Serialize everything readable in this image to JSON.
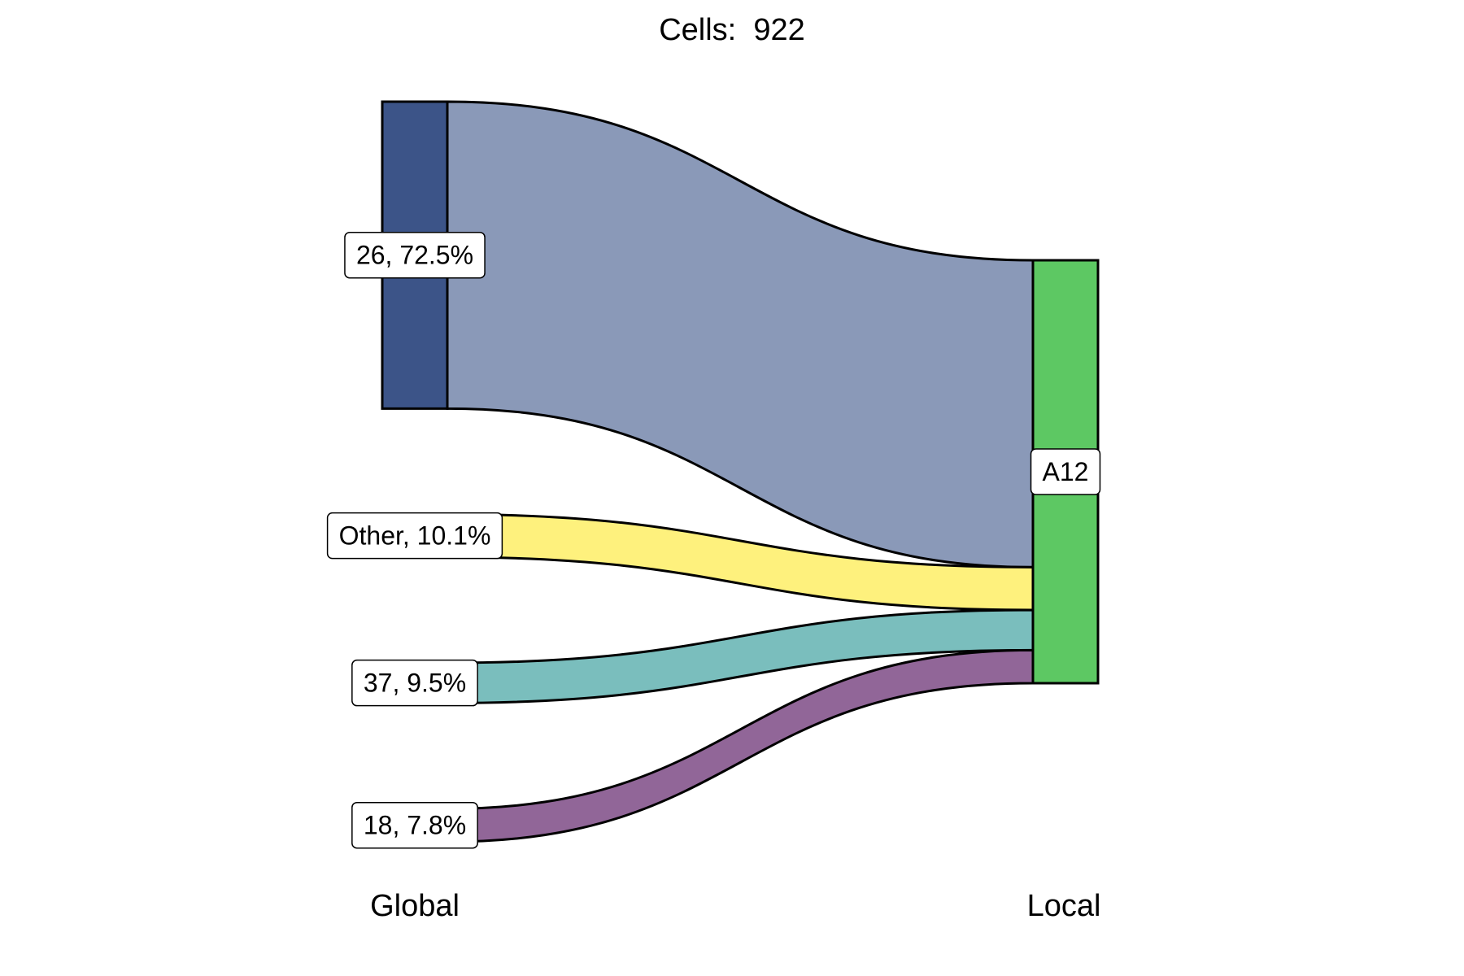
{
  "chart_data": {
    "type": "sankey",
    "title": "Cells:  922",
    "axis_labels": [
      "Global",
      "Local"
    ],
    "left_nodes": [
      {
        "label": "26, 72.5%",
        "name": "26",
        "percent": 72.5,
        "color": "#3c5488",
        "flow_color": "#8a99b8"
      },
      {
        "label": "Other, 10.1%",
        "name": "Other",
        "percent": 10.1,
        "color": "#fef17d",
        "flow_color": "#fef17d"
      },
      {
        "label": "37, 9.5%",
        "name": "37",
        "percent": 9.5,
        "color": "#7abebd",
        "flow_color": "#7abebd"
      },
      {
        "label": "18, 7.8%",
        "name": "18",
        "percent": 7.8,
        "color": "#916698",
        "flow_color": "#916698"
      }
    ],
    "right_nodes": [
      {
        "label": "A12",
        "name": "A12",
        "percent": 100,
        "color": "#5dc863"
      }
    ]
  }
}
